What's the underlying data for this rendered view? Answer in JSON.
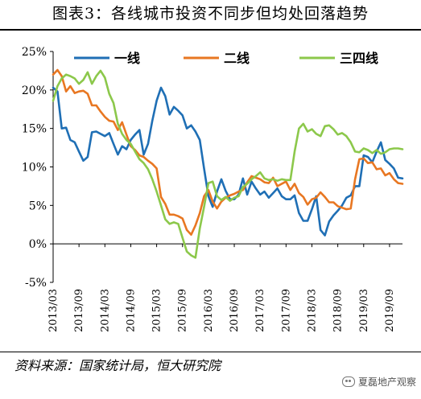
{
  "title": "图表3：各线城市投资不同步但均处回落趋势",
  "source": "资料来源：国家统计局，恒大研究院",
  "watermark": "夏磊地产观察",
  "chart_data": {
    "type": "line",
    "title": "图表3：各线城市投资不同步但均处回落趋势",
    "xlabel": "",
    "ylabel": "",
    "ylim": [
      -5,
      25
    ],
    "yticks": [
      -5,
      0,
      5,
      10,
      15,
      20,
      25
    ],
    "ytick_labels": [
      "-5%",
      "0%",
      "5%",
      "10%",
      "15%",
      "20%",
      "25%"
    ],
    "x_tick_labels": [
      "2013/03",
      "2013/09",
      "2014/03",
      "2014/09",
      "2015/03",
      "2015/09",
      "2016/03",
      "2016/09",
      "2017/03",
      "2017/09",
      "2018/03",
      "2018/09",
      "2019/03",
      "2019/09"
    ],
    "x_range_months": [
      "2013/03",
      "2019/12"
    ],
    "grid": false,
    "legend_position": "top",
    "series": [
      {
        "name": "一线",
        "color": "#1F6FB5",
        "points": [
          [
            "2013/03",
            20.3
          ],
          [
            "2013/04",
            19.8
          ],
          [
            "2013/05",
            15.0
          ],
          [
            "2013/06",
            15.1
          ],
          [
            "2013/07",
            13.5
          ],
          [
            "2013/08",
            13.2
          ],
          [
            "2013/09",
            12.0
          ],
          [
            "2013/10",
            10.8
          ],
          [
            "2013/11",
            11.3
          ],
          [
            "2013/12",
            14.5
          ],
          [
            "2014/01",
            14.6
          ],
          [
            "2014/02",
            14.3
          ],
          [
            "2014/03",
            14.0
          ],
          [
            "2014/04",
            14.4
          ],
          [
            "2014/05",
            13.0
          ],
          [
            "2014/06",
            11.6
          ],
          [
            "2014/07",
            12.7
          ],
          [
            "2014/08",
            12.3
          ],
          [
            "2014/09",
            13.5
          ],
          [
            "2014/10",
            14.2
          ],
          [
            "2014/11",
            14.8
          ],
          [
            "2014/12",
            11.6
          ],
          [
            "2015/01",
            13.0
          ],
          [
            "2015/02",
            16.0
          ],
          [
            "2015/03",
            18.6
          ],
          [
            "2015/04",
            20.3
          ],
          [
            "2015/05",
            19.2
          ],
          [
            "2015/06",
            16.8
          ],
          [
            "2015/07",
            17.8
          ],
          [
            "2015/08",
            17.3
          ],
          [
            "2015/09",
            16.7
          ],
          [
            "2015/10",
            15.0
          ],
          [
            "2015/11",
            15.4
          ],
          [
            "2015/12",
            14.6
          ],
          [
            "2016/01",
            13.5
          ],
          [
            "2016/02",
            9.8
          ],
          [
            "2016/03",
            6.2
          ],
          [
            "2016/04",
            4.8
          ],
          [
            "2016/05",
            6.8
          ],
          [
            "2016/06",
            8.4
          ],
          [
            "2016/07",
            6.9
          ],
          [
            "2016/08",
            5.8
          ],
          [
            "2016/09",
            5.8
          ],
          [
            "2016/10",
            6.4
          ],
          [
            "2016/11",
            8.5
          ],
          [
            "2016/12",
            6.4
          ],
          [
            "2017/01",
            8.1
          ],
          [
            "2017/02",
            7.2
          ],
          [
            "2017/03",
            6.4
          ],
          [
            "2017/04",
            6.8
          ],
          [
            "2017/05",
            6.0
          ],
          [
            "2017/06",
            6.6
          ],
          [
            "2017/07",
            7.2
          ],
          [
            "2017/08",
            6.2
          ],
          [
            "2017/09",
            5.8
          ],
          [
            "2017/10",
            5.8
          ],
          [
            "2017/11",
            6.3
          ],
          [
            "2017/12",
            4.0
          ],
          [
            "2018/01",
            3.0
          ],
          [
            "2018/02",
            3.0
          ],
          [
            "2018/03",
            4.5
          ],
          [
            "2018/04",
            6.2
          ],
          [
            "2018/05",
            1.8
          ],
          [
            "2018/06",
            1.1
          ],
          [
            "2018/07",
            2.9
          ],
          [
            "2018/08",
            3.7
          ],
          [
            "2018/09",
            4.3
          ],
          [
            "2018/10",
            5.0
          ],
          [
            "2018/11",
            6.0
          ],
          [
            "2018/12",
            6.3
          ],
          [
            "2019/01",
            7.5
          ],
          [
            "2019/02",
            7.5
          ],
          [
            "2019/03",
            11.5
          ],
          [
            "2019/04",
            11.3
          ],
          [
            "2019/05",
            10.6
          ],
          [
            "2019/06",
            12.0
          ],
          [
            "2019/07",
            13.2
          ],
          [
            "2019/08",
            10.9
          ],
          [
            "2019/09",
            10.4
          ],
          [
            "2019/10",
            9.8
          ],
          [
            "2019/11",
            8.6
          ],
          [
            "2019/12",
            8.5
          ]
        ]
      },
      {
        "name": "二线",
        "color": "#E87722",
        "points": [
          [
            "2013/03",
            22.0
          ],
          [
            "2013/04",
            22.6
          ],
          [
            "2013/05",
            21.8
          ],
          [
            "2013/06",
            19.8
          ],
          [
            "2013/07",
            20.5
          ],
          [
            "2013/08",
            19.6
          ],
          [
            "2013/09",
            19.8
          ],
          [
            "2013/10",
            19.9
          ],
          [
            "2013/11",
            19.5
          ],
          [
            "2013/12",
            18.0
          ],
          [
            "2014/01",
            18.0
          ],
          [
            "2014/02",
            17.2
          ],
          [
            "2014/03",
            16.5
          ],
          [
            "2014/04",
            16.0
          ],
          [
            "2014/05",
            15.9
          ],
          [
            "2014/06",
            14.8
          ],
          [
            "2014/07",
            15.8
          ],
          [
            "2014/08",
            14.2
          ],
          [
            "2014/09",
            12.7
          ],
          [
            "2014/10",
            12.2
          ],
          [
            "2014/11",
            11.5
          ],
          [
            "2014/12",
            11.3
          ],
          [
            "2015/01",
            10.8
          ],
          [
            "2015/02",
            10.4
          ],
          [
            "2015/03",
            9.8
          ],
          [
            "2015/04",
            6.1
          ],
          [
            "2015/05",
            5.2
          ],
          [
            "2015/06",
            3.8
          ],
          [
            "2015/07",
            3.8
          ],
          [
            "2015/08",
            3.6
          ],
          [
            "2015/09",
            3.3
          ],
          [
            "2015/10",
            1.8
          ],
          [
            "2015/11",
            1.2
          ],
          [
            "2015/12",
            2.4
          ],
          [
            "2016/01",
            4.0
          ],
          [
            "2016/02",
            6.2
          ],
          [
            "2016/03",
            7.0
          ],
          [
            "2016/04",
            5.5
          ],
          [
            "2016/05",
            4.6
          ],
          [
            "2016/06",
            5.5
          ],
          [
            "2016/07",
            6.0
          ],
          [
            "2016/08",
            6.3
          ],
          [
            "2016/09",
            6.5
          ],
          [
            "2016/10",
            6.8
          ],
          [
            "2016/11",
            7.0
          ],
          [
            "2016/12",
            8.0
          ],
          [
            "2017/01",
            8.8
          ],
          [
            "2017/02",
            8.6
          ],
          [
            "2017/03",
            8.4
          ],
          [
            "2017/04",
            8.0
          ],
          [
            "2017/05",
            7.9
          ],
          [
            "2017/06",
            8.6
          ],
          [
            "2017/07",
            7.5
          ],
          [
            "2017/08",
            7.8
          ],
          [
            "2017/09",
            8.1
          ],
          [
            "2017/10",
            7.0
          ],
          [
            "2017/11",
            7.8
          ],
          [
            "2017/12",
            6.6
          ],
          [
            "2018/01",
            6.1
          ],
          [
            "2018/02",
            5.1
          ],
          [
            "2018/03",
            5.8
          ],
          [
            "2018/04",
            6.0
          ],
          [
            "2018/05",
            6.7
          ],
          [
            "2018/06",
            6.1
          ],
          [
            "2018/07",
            5.4
          ],
          [
            "2018/08",
            5.4
          ],
          [
            "2018/09",
            4.9
          ],
          [
            "2018/10",
            4.7
          ],
          [
            "2018/11",
            4.5
          ],
          [
            "2018/12",
            4.6
          ],
          [
            "2019/01",
            8.4
          ],
          [
            "2019/02",
            11.0
          ],
          [
            "2019/03",
            11.1
          ],
          [
            "2019/04",
            10.5
          ],
          [
            "2019/05",
            10.6
          ],
          [
            "2019/06",
            9.7
          ],
          [
            "2019/07",
            9.8
          ],
          [
            "2019/08",
            8.9
          ],
          [
            "2019/09",
            9.2
          ],
          [
            "2019/10",
            8.4
          ],
          [
            "2019/11",
            7.9
          ],
          [
            "2019/12",
            7.8
          ]
        ]
      },
      {
        "name": "三四线",
        "color": "#8CC84B",
        "points": [
          [
            "2013/03",
            18.6
          ],
          [
            "2013/04",
            20.5
          ],
          [
            "2013/05",
            21.5
          ],
          [
            "2013/06",
            22.0
          ],
          [
            "2013/07",
            21.8
          ],
          [
            "2013/08",
            21.5
          ],
          [
            "2013/09",
            20.8
          ],
          [
            "2013/10",
            21.3
          ],
          [
            "2013/11",
            22.3
          ],
          [
            "2013/12",
            20.8
          ],
          [
            "2014/01",
            21.8
          ],
          [
            "2014/02",
            22.5
          ],
          [
            "2014/03",
            21.6
          ],
          [
            "2014/04",
            19.5
          ],
          [
            "2014/05",
            18.3
          ],
          [
            "2014/06",
            15.6
          ],
          [
            "2014/07",
            14.3
          ],
          [
            "2014/08",
            13.5
          ],
          [
            "2014/09",
            13.0
          ],
          [
            "2014/10",
            12.0
          ],
          [
            "2014/11",
            11.0
          ],
          [
            "2014/12",
            10.5
          ],
          [
            "2015/01",
            9.7
          ],
          [
            "2015/02",
            8.4
          ],
          [
            "2015/03",
            6.8
          ],
          [
            "2015/04",
            5.0
          ],
          [
            "2015/05",
            3.2
          ],
          [
            "2015/06",
            2.6
          ],
          [
            "2015/07",
            2.8
          ],
          [
            "2015/08",
            2.6
          ],
          [
            "2015/09",
            0.8
          ],
          [
            "2015/10",
            -1.0
          ],
          [
            "2015/11",
            -1.5
          ],
          [
            "2015/12",
            -1.8
          ],
          [
            "2016/01",
            2.0
          ],
          [
            "2016/02",
            4.8
          ],
          [
            "2016/03",
            7.9
          ],
          [
            "2016/04",
            8.1
          ],
          [
            "2016/05",
            6.2
          ],
          [
            "2016/06",
            5.7
          ],
          [
            "2016/07",
            6.1
          ],
          [
            "2016/08",
            5.6
          ],
          [
            "2016/09",
            6.0
          ],
          [
            "2016/10",
            6.2
          ],
          [
            "2016/11",
            7.4
          ],
          [
            "2016/12",
            7.8
          ],
          [
            "2017/01",
            8.4
          ],
          [
            "2017/02",
            8.8
          ],
          [
            "2017/03",
            9.3
          ],
          [
            "2017/04",
            8.5
          ],
          [
            "2017/05",
            8.3
          ],
          [
            "2017/06",
            8.4
          ],
          [
            "2017/07",
            8.2
          ],
          [
            "2017/08",
            8.4
          ],
          [
            "2017/09",
            8.3
          ],
          [
            "2017/10",
            8.3
          ],
          [
            "2017/11",
            12.0
          ],
          [
            "2017/12",
            15.0
          ],
          [
            "2018/01",
            15.6
          ],
          [
            "2018/02",
            14.6
          ],
          [
            "2018/03",
            14.9
          ],
          [
            "2018/04",
            14.3
          ],
          [
            "2018/05",
            14.0
          ],
          [
            "2018/06",
            15.3
          ],
          [
            "2018/07",
            15.4
          ],
          [
            "2018/08",
            14.9
          ],
          [
            "2018/09",
            14.2
          ],
          [
            "2018/10",
            14.4
          ],
          [
            "2018/11",
            14.0
          ],
          [
            "2018/12",
            13.2
          ],
          [
            "2019/01",
            12.0
          ],
          [
            "2019/02",
            11.9
          ],
          [
            "2019/03",
            12.4
          ],
          [
            "2019/04",
            12.2
          ],
          [
            "2019/05",
            11.8
          ],
          [
            "2019/06",
            12.2
          ],
          [
            "2019/07",
            11.7
          ],
          [
            "2019/08",
            11.9
          ],
          [
            "2019/09",
            12.3
          ],
          [
            "2019/10",
            12.4
          ],
          [
            "2019/11",
            12.4
          ],
          [
            "2019/12",
            12.3
          ]
        ]
      }
    ]
  }
}
